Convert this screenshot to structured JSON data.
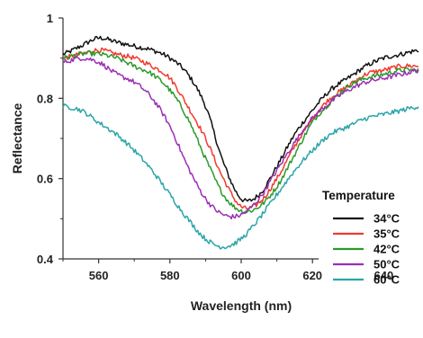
{
  "chart_data": {
    "type": "line",
    "title": "",
    "xlabel": "Wavelength (nm)",
    "ylabel": "Reflectance",
    "xlim": [
      550,
      650
    ],
    "ylim": [
      0.4,
      1.0
    ],
    "x_ticks": [
      560,
      580,
      600,
      620,
      640
    ],
    "y_ticks": [
      0.4,
      0.6,
      0.8,
      1.0
    ],
    "x_tick_labels": [
      "560",
      "580",
      "600",
      "620",
      "640"
    ],
    "y_tick_labels": [
      "0.4",
      "0.6",
      "0.8",
      "1"
    ],
    "grid": false,
    "legend": {
      "title": "Temperature",
      "position": "right"
    },
    "series": [
      {
        "name": "34°C",
        "color": "#111111",
        "x": [
          550,
          555,
          560,
          565,
          570,
          575,
          580,
          585,
          590,
          595,
          600,
          605,
          610,
          615,
          620,
          625,
          630,
          635,
          640,
          645,
          650
        ],
        "y": [
          0.91,
          0.93,
          0.95,
          0.94,
          0.93,
          0.92,
          0.9,
          0.86,
          0.78,
          0.64,
          0.55,
          0.56,
          0.63,
          0.71,
          0.77,
          0.82,
          0.85,
          0.88,
          0.9,
          0.91,
          0.92
        ]
      },
      {
        "name": "35°C",
        "color": "#f03a2e",
        "x": [
          550,
          555,
          560,
          565,
          570,
          575,
          580,
          585,
          590,
          595,
          600,
          605,
          610,
          615,
          620,
          625,
          630,
          635,
          640,
          645,
          650
        ],
        "y": [
          0.9,
          0.91,
          0.92,
          0.91,
          0.9,
          0.88,
          0.85,
          0.78,
          0.7,
          0.6,
          0.53,
          0.54,
          0.6,
          0.68,
          0.75,
          0.8,
          0.83,
          0.86,
          0.87,
          0.88,
          0.88
        ]
      },
      {
        "name": "42°C",
        "color": "#2a9a2a",
        "x": [
          550,
          555,
          560,
          565,
          570,
          575,
          580,
          585,
          590,
          595,
          600,
          605,
          610,
          615,
          620,
          625,
          630,
          635,
          640,
          645,
          650
        ],
        "y": [
          0.9,
          0.91,
          0.91,
          0.9,
          0.88,
          0.86,
          0.82,
          0.75,
          0.65,
          0.56,
          0.52,
          0.53,
          0.58,
          0.66,
          0.74,
          0.79,
          0.83,
          0.85,
          0.86,
          0.87,
          0.87
        ]
      },
      {
        "name": "50°C",
        "color": "#9b2fb5",
        "x": [
          550,
          555,
          560,
          565,
          570,
          575,
          580,
          585,
          590,
          595,
          600,
          605,
          610,
          615,
          620,
          625,
          630,
          635,
          640,
          645,
          650
        ],
        "y": [
          0.89,
          0.9,
          0.89,
          0.86,
          0.84,
          0.8,
          0.73,
          0.63,
          0.55,
          0.51,
          0.51,
          0.55,
          0.62,
          0.69,
          0.75,
          0.79,
          0.82,
          0.84,
          0.85,
          0.86,
          0.87
        ]
      },
      {
        "name": "60°C",
        "color": "#2aa5a8",
        "x": [
          550,
          555,
          560,
          565,
          570,
          575,
          580,
          585,
          590,
          595,
          600,
          605,
          610,
          615,
          620,
          625,
          630,
          635,
          640,
          645,
          650
        ],
        "y": [
          0.78,
          0.77,
          0.74,
          0.71,
          0.67,
          0.62,
          0.56,
          0.5,
          0.45,
          0.43,
          0.45,
          0.5,
          0.56,
          0.62,
          0.67,
          0.71,
          0.73,
          0.75,
          0.76,
          0.77,
          0.78
        ]
      }
    ]
  }
}
